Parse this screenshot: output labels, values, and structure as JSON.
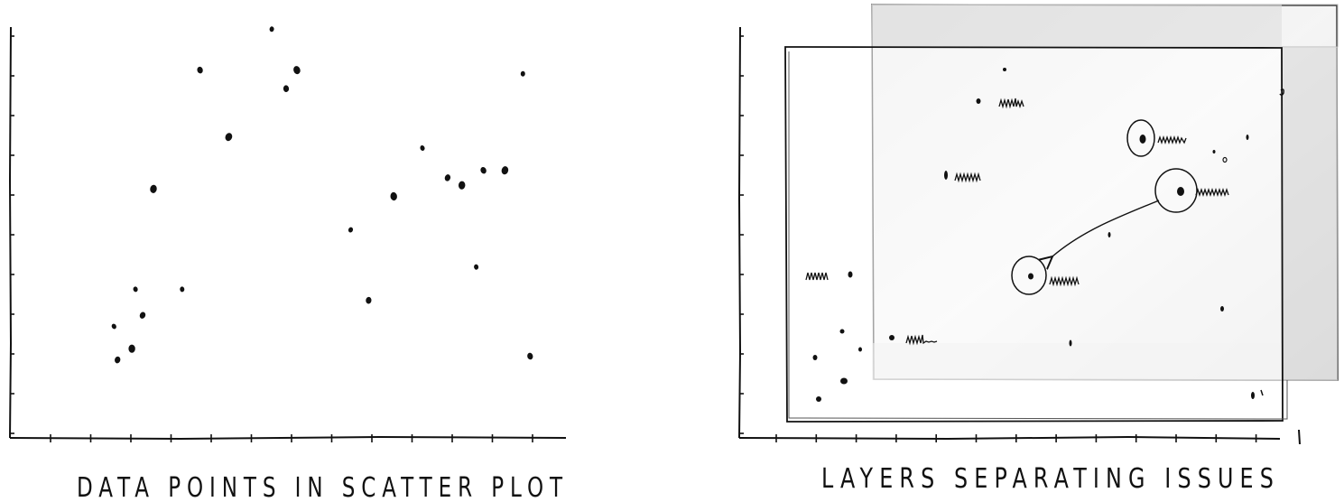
{
  "colors": {
    "ink": "#111111",
    "paper": "#ffffff",
    "shade": "#e2e2e2"
  },
  "left_panel": {
    "caption": "DATA POINTS IN SCATTER PLOT",
    "points": [
      [
        1.0,
        2.0
      ],
      [
        1.1,
        1.1
      ],
      [
        1.5,
        1.4
      ],
      [
        1.6,
        3.0
      ],
      [
        1.8,
        2.3
      ],
      [
        2.1,
        5.7
      ],
      [
        2.9,
        3.0
      ],
      [
        3.4,
        8.9
      ],
      [
        4.2,
        7.1
      ],
      [
        5.4,
        10.0
      ],
      [
        5.8,
        8.4
      ],
      [
        6.1,
        8.9
      ],
      [
        7.6,
        4.6
      ],
      [
        8.1,
        2.7
      ],
      [
        8.8,
        5.5
      ],
      [
        9.6,
        6.8
      ],
      [
        10.3,
        6.0
      ],
      [
        10.7,
        5.8
      ],
      [
        11.1,
        3.6
      ],
      [
        11.3,
        6.2
      ],
      [
        11.9,
        6.2
      ],
      [
        12.4,
        8.8
      ],
      [
        12.6,
        1.2
      ]
    ]
  },
  "right_panel": {
    "caption": "LAYERS SEPARATING ISSUES"
  }
}
